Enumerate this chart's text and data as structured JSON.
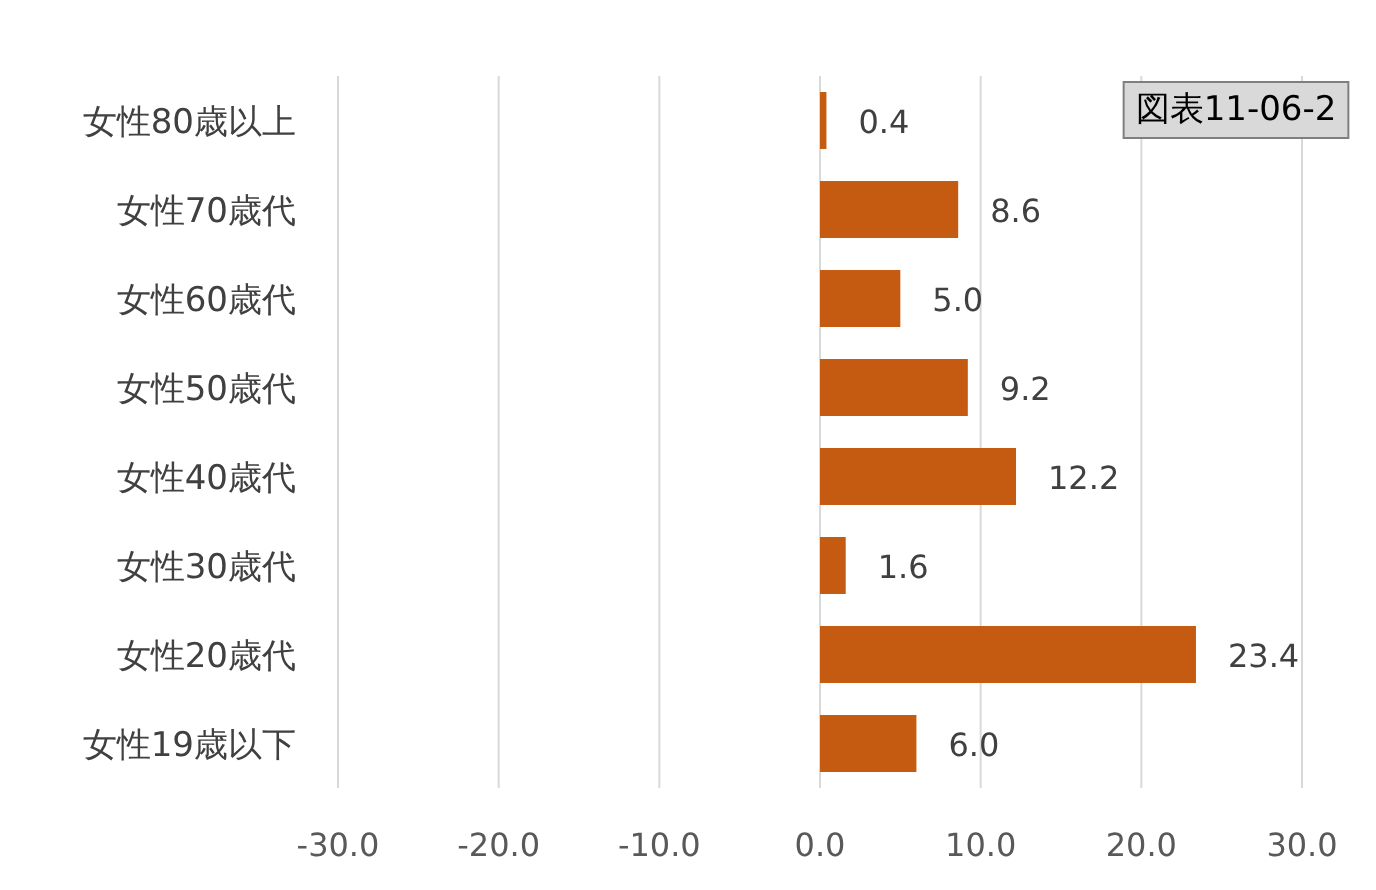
{
  "chart_data": {
    "type": "bar",
    "orientation": "horizontal",
    "categories": [
      "女性80歳以上",
      "女性70歳代",
      "女性60歳代",
      "女性50歳代",
      "女性40歳代",
      "女性30歳代",
      "女性20歳代",
      "女性19歳以下"
    ],
    "values": [
      0.4,
      8.6,
      5.0,
      9.2,
      12.2,
      1.6,
      23.4,
      6.0
    ],
    "value_labels": [
      "0.4",
      "8.6",
      "5.0",
      "9.2",
      "12.2",
      "1.6",
      "23.4",
      "6.0"
    ],
    "color": "#c55a11",
    "xlim": [
      -30,
      30
    ],
    "xticks": [
      {
        "value": -30,
        "label": "-30.0"
      },
      {
        "value": -20,
        "label": "-20.0"
      },
      {
        "value": -10,
        "label": "-10.0"
      },
      {
        "value": 0,
        "label": "0.0"
      },
      {
        "value": 10,
        "label": "10.0"
      },
      {
        "value": 20,
        "label": "20.0"
      },
      {
        "value": 30,
        "label": "30.0"
      }
    ],
    "grid": "x",
    "annotations": [
      "図表11-06-2"
    ]
  }
}
